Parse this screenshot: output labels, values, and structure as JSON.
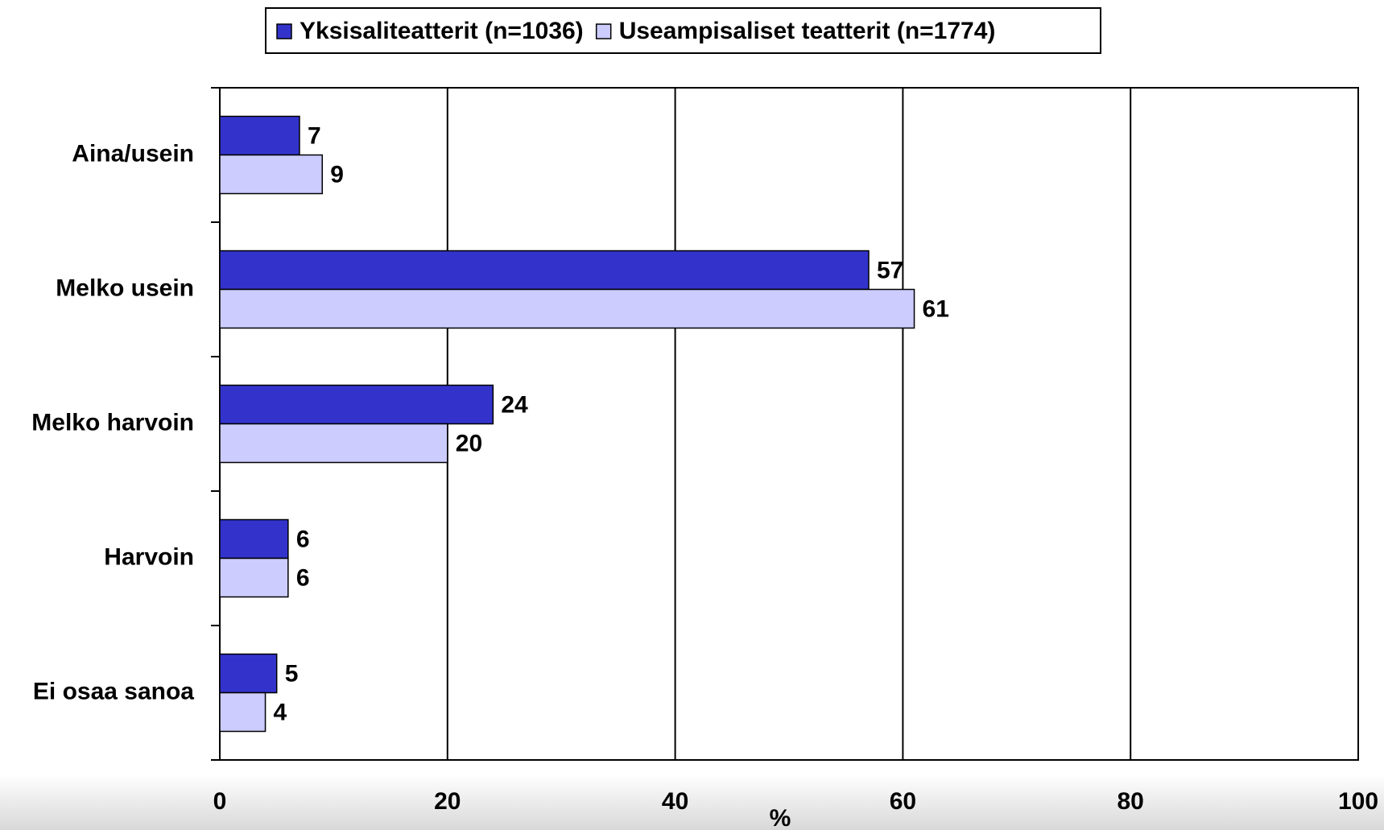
{
  "chart_data": {
    "type": "barh",
    "categories": [
      "Aina/usein",
      "Melko usein",
      "Melko harvoin",
      "Harvoin",
      "Ei osaa sanoa"
    ],
    "series": [
      {
        "name": "Yksisaliteatterit (n=1036)",
        "color": "#3333cc",
        "values": [
          7,
          57,
          24,
          6,
          5
        ]
      },
      {
        "name": "Useampisaliset teatterit (n=1774)",
        "color": "#ccccff",
        "values": [
          9,
          61,
          20,
          6,
          4
        ]
      }
    ],
    "xlabel": "%",
    "xlim": [
      0,
      100
    ],
    "xticks": [
      0,
      20,
      40,
      60,
      80,
      100
    ],
    "grid": true,
    "legend": "top"
  }
}
